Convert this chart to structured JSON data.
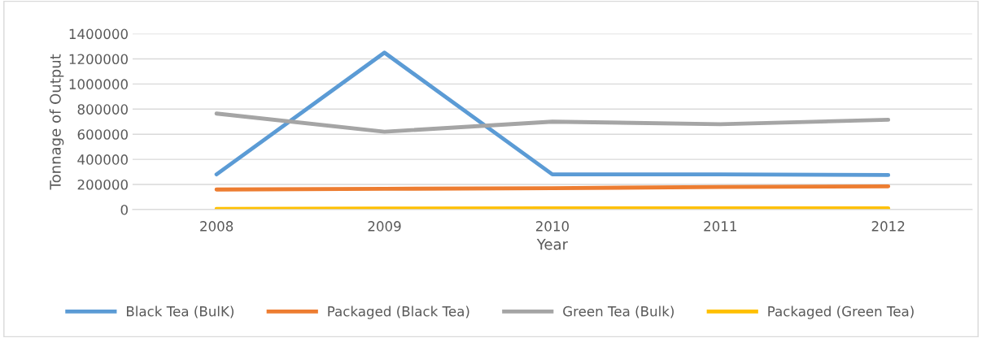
{
  "chart_data": {
    "type": "line",
    "xlabel": "Year",
    "ylabel": "Tonnage of Output",
    "categories": [
      "2008",
      "2009",
      "2010",
      "2011",
      "2012"
    ],
    "series": [
      {
        "name": "Black Tea (BulK)",
        "color": "#5b9bd5",
        "values": [
          280000,
          1250000,
          280000,
          280000,
          275000
        ]
      },
      {
        "name": "Packaged (Black Tea)",
        "color": "#ed7d31",
        "values": [
          160000,
          165000,
          170000,
          180000,
          185000
        ]
      },
      {
        "name": "Green Tea (Bulk)",
        "color": "#a5a5a5",
        "values": [
          765000,
          620000,
          700000,
          680000,
          715000
        ]
      },
      {
        "name": "Packaged (Green Tea)",
        "color": "#ffc000",
        "values": [
          5000,
          8000,
          9000,
          10000,
          10000
        ]
      }
    ],
    "ylim": [
      0,
      1400000
    ],
    "yticks": [
      0,
      200000,
      400000,
      600000,
      800000,
      1000000,
      1200000,
      1400000
    ],
    "grid": "y",
    "legend": "bottom",
    "marker": "none",
    "line_style": "solid"
  }
}
